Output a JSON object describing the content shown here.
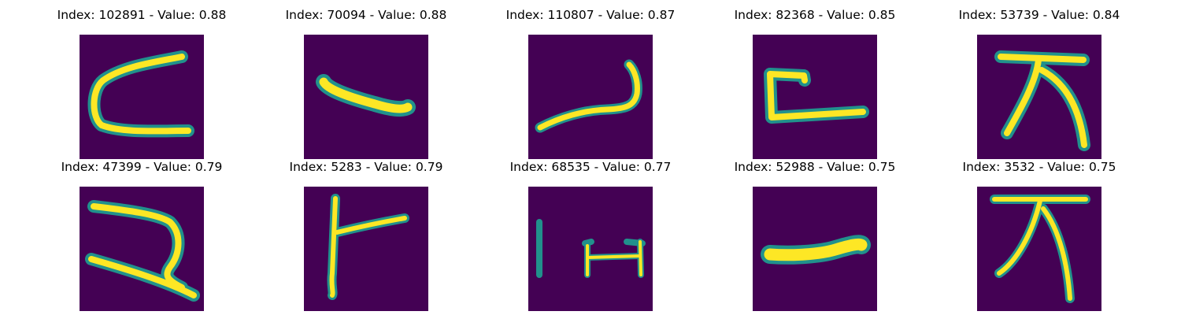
{
  "colors": {
    "background": "#440154",
    "mid": "#21918c",
    "high": "#fde725"
  },
  "panels": [
    {
      "title": "Index: 102891 - Value: 0.88",
      "glyph": "c-curve"
    },
    {
      "title": "Index: 70094 - Value: 0.88",
      "glyph": "short-dash"
    },
    {
      "title": "Index: 110807 - Value: 0.87",
      "glyph": "hook-stroke"
    },
    {
      "title": "Index: 82368 - Value: 0.85",
      "glyph": "bracket-l"
    },
    {
      "title": "Index: 53739 - Value: 0.84",
      "glyph": "tent-character"
    },
    {
      "title": "Index: 47399 - Value: 0.79",
      "glyph": "loop-curve"
    },
    {
      "title": "Index: 5283 - Value: 0.79",
      "glyph": "branch-stroke"
    },
    {
      "title": "Index: 68535 - Value: 0.77",
      "glyph": "bar-and-bracket"
    },
    {
      "title": "Index: 52988 - Value: 0.75",
      "glyph": "horizontal-bar"
    },
    {
      "title": "Index: 3532 - Value: 0.75",
      "glyph": "tent-character"
    }
  ]
}
